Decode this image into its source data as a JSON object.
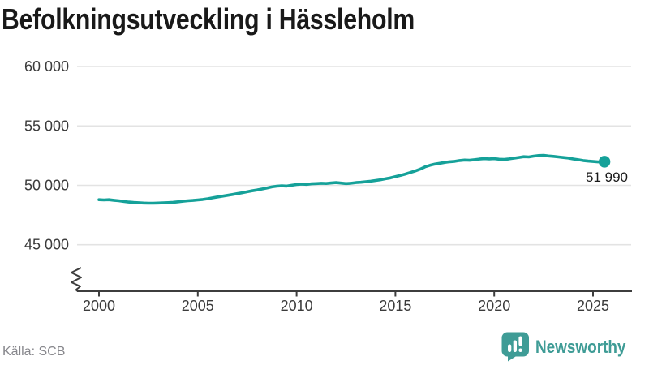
{
  "title": "Befolkningsutveckling i Hässleholm",
  "footer": {
    "source": "Källa: SCB",
    "brand": "Newsworthy"
  },
  "icons": {
    "brand_icon": "speech-bubble-bar-chart-exclamation"
  },
  "colors": {
    "background": "#ffffff",
    "line": "#15a199",
    "end_dot": "#15a199",
    "brand": "#3f9c96",
    "grid": "#e3e3e3",
    "axis": "#3d3d3d",
    "tick_text": "#3b3b3b",
    "title_text": "#191919",
    "end_label_text": "#1a1a1a",
    "source_text": "#87878c"
  },
  "chart_data": {
    "type": "line",
    "title": "Befolkningsutveckling i Hässleholm",
    "xlabel": "",
    "ylabel": "",
    "legend": "none",
    "grid": "horizontal",
    "axis_break_bottom_left": true,
    "ylim": [
      45000,
      60000
    ],
    "xlim": [
      2000,
      2025.6
    ],
    "x_ticks": [
      2000,
      2005,
      2010,
      2015,
      2020,
      2025
    ],
    "y_ticks": [
      {
        "value": 45000,
        "label": "45 000"
      },
      {
        "value": 50000,
        "label": "50 000"
      },
      {
        "value": 55000,
        "label": "55 000"
      },
      {
        "value": 60000,
        "label": "60 000"
      }
    ],
    "end_label": "51 990",
    "last_value": 51990,
    "series": [
      {
        "name": "Befolkning i Hässleholm",
        "points": [
          [
            2000.0,
            48790
          ],
          [
            2000.25,
            48770
          ],
          [
            2000.5,
            48790
          ],
          [
            2000.75,
            48740
          ],
          [
            2001.0,
            48700
          ],
          [
            2001.25,
            48650
          ],
          [
            2001.5,
            48590
          ],
          [
            2001.75,
            48560
          ],
          [
            2002.0,
            48540
          ],
          [
            2002.25,
            48510
          ],
          [
            2002.5,
            48495
          ],
          [
            2002.75,
            48500
          ],
          [
            2003.0,
            48510
          ],
          [
            2003.25,
            48525
          ],
          [
            2003.5,
            48545
          ],
          [
            2003.75,
            48570
          ],
          [
            2004.0,
            48610
          ],
          [
            2004.25,
            48660
          ],
          [
            2004.5,
            48700
          ],
          [
            2004.75,
            48730
          ],
          [
            2005.0,
            48770
          ],
          [
            2005.25,
            48810
          ],
          [
            2005.5,
            48870
          ],
          [
            2005.75,
            48950
          ],
          [
            2006.0,
            49020
          ],
          [
            2006.25,
            49090
          ],
          [
            2006.5,
            49160
          ],
          [
            2006.75,
            49230
          ],
          [
            2007.0,
            49300
          ],
          [
            2007.25,
            49380
          ],
          [
            2007.5,
            49460
          ],
          [
            2007.75,
            49540
          ],
          [
            2008.0,
            49610
          ],
          [
            2008.25,
            49690
          ],
          [
            2008.5,
            49780
          ],
          [
            2008.75,
            49870
          ],
          [
            2009.0,
            49930
          ],
          [
            2009.25,
            49960
          ],
          [
            2009.5,
            49940
          ],
          [
            2009.75,
            50010
          ],
          [
            2010.0,
            50070
          ],
          [
            2010.25,
            50100
          ],
          [
            2010.5,
            50080
          ],
          [
            2010.75,
            50130
          ],
          [
            2011.0,
            50150
          ],
          [
            2011.25,
            50180
          ],
          [
            2011.5,
            50160
          ],
          [
            2011.75,
            50200
          ],
          [
            2012.0,
            50230
          ],
          [
            2012.25,
            50190
          ],
          [
            2012.5,
            50150
          ],
          [
            2012.75,
            50180
          ],
          [
            2013.0,
            50230
          ],
          [
            2013.25,
            50260
          ],
          [
            2013.5,
            50300
          ],
          [
            2013.75,
            50350
          ],
          [
            2014.0,
            50410
          ],
          [
            2014.25,
            50470
          ],
          [
            2014.5,
            50550
          ],
          [
            2014.75,
            50630
          ],
          [
            2015.0,
            50730
          ],
          [
            2015.25,
            50830
          ],
          [
            2015.5,
            50950
          ],
          [
            2015.75,
            51080
          ],
          [
            2016.0,
            51210
          ],
          [
            2016.25,
            51360
          ],
          [
            2016.5,
            51560
          ],
          [
            2016.75,
            51690
          ],
          [
            2017.0,
            51790
          ],
          [
            2017.25,
            51860
          ],
          [
            2017.5,
            51930
          ],
          [
            2017.75,
            51990
          ],
          [
            2018.0,
            52020
          ],
          [
            2018.25,
            52090
          ],
          [
            2018.5,
            52130
          ],
          [
            2018.75,
            52110
          ],
          [
            2019.0,
            52160
          ],
          [
            2019.25,
            52210
          ],
          [
            2019.5,
            52250
          ],
          [
            2019.75,
            52230
          ],
          [
            2020.0,
            52250
          ],
          [
            2020.25,
            52200
          ],
          [
            2020.5,
            52180
          ],
          [
            2020.75,
            52230
          ],
          [
            2021.0,
            52290
          ],
          [
            2021.25,
            52350
          ],
          [
            2021.5,
            52410
          ],
          [
            2021.75,
            52390
          ],
          [
            2022.0,
            52460
          ],
          [
            2022.25,
            52510
          ],
          [
            2022.5,
            52520
          ],
          [
            2022.75,
            52470
          ],
          [
            2023.0,
            52440
          ],
          [
            2023.25,
            52390
          ],
          [
            2023.5,
            52340
          ],
          [
            2023.75,
            52300
          ],
          [
            2024.0,
            52220
          ],
          [
            2024.25,
            52160
          ],
          [
            2024.5,
            52090
          ],
          [
            2024.75,
            52040
          ],
          [
            2025.0,
            52010
          ],
          [
            2025.25,
            51975
          ],
          [
            2025.58,
            51990
          ]
        ]
      }
    ]
  }
}
